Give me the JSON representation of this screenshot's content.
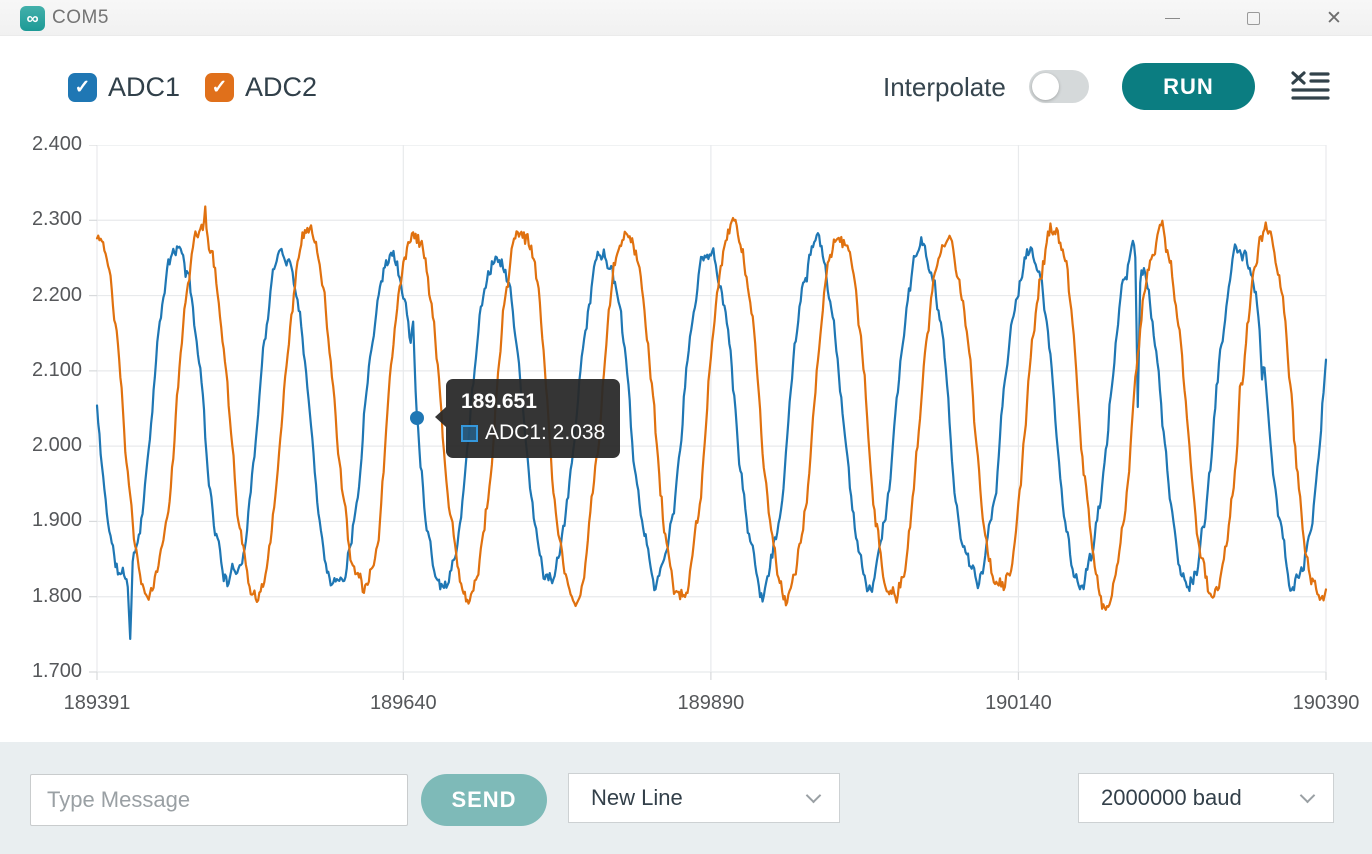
{
  "window": {
    "title": "COM5",
    "app_icon_glyph": "∞",
    "controls": {
      "minimize": "minimize",
      "maximize": "maximize",
      "close": "✕"
    }
  },
  "toolbar": {
    "legend": [
      {
        "label": "ADC1",
        "color": "#1F77B4",
        "checked": true,
        "check_glyph": "✓"
      },
      {
        "label": "ADC2",
        "color": "#E0701B",
        "checked": true,
        "check_glyph": "✓"
      }
    ],
    "interpolate_label": "Interpolate",
    "interpolate_on": false,
    "run_label": "RUN",
    "accent_color": "#0B7D81"
  },
  "chart_data": {
    "type": "line",
    "title": "",
    "xlabel": "",
    "ylabel": "",
    "x_range": [
      189391,
      190390
    ],
    "y_range": [
      1.7,
      2.4
    ],
    "x_ticks": [
      "189391",
      "189640",
      "189890",
      "190140",
      "190390"
    ],
    "y_ticks": [
      "2.400",
      "2.300",
      "2.200",
      "2.100",
      "2.000",
      "1.900",
      "1.800",
      "1.700"
    ],
    "grid": true,
    "grid_color": "#e8eaec",
    "tick_color": "#d8dadc",
    "series": [
      {
        "name": "ADC1",
        "color": "#1F77B4",
        "midline": 2.04,
        "amplitude": 0.218,
        "period": 86.5,
        "peak_x": 189629.4,
        "shape_exponent": 0.85,
        "noise_seed": 11
      },
      {
        "name": "ADC2",
        "color": "#E0710F",
        "midline": 2.045,
        "amplitude": 0.242,
        "period": 86.5,
        "peak_x": 189649.4,
        "shape_exponent": 0.85,
        "noise_seed": 23
      }
    ],
    "noise_amplitude": 0.012,
    "spikes": [
      {
        "series": 0,
        "x": 189418,
        "dv": -0.09
      },
      {
        "series": 0,
        "x": 189648,
        "dv": 0.062
      },
      {
        "series": 0,
        "x": 190237,
        "dv": -0.21
      },
      {
        "series": 0,
        "x": 190338,
        "dv": -0.05
      },
      {
        "series": 1,
        "x": 189479,
        "dv": 0.035
      },
      {
        "series": 1,
        "x": 190320,
        "dv": 0.028
      }
    ],
    "tooltip": {
      "title": "189.651",
      "series_label": "ADC1",
      "value": "2.038",
      "label_value": "ADC1: 2.038",
      "point": {
        "x": 189651,
        "y": 2.038
      },
      "swatch_border": "#3598DC",
      "swatch_fill": "rgba(31,119,180,0.55)"
    }
  },
  "bottom_bar": {
    "message_placeholder": "Type Message",
    "send_label": "SEND",
    "send_color": "#7EBAB8",
    "line_ending": "New Line",
    "baud": "2000000 baud"
  }
}
